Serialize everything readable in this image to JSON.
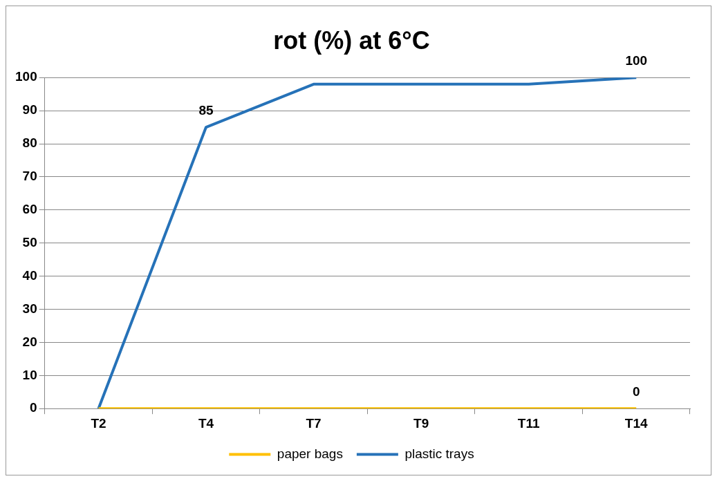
{
  "chart_data": {
    "type": "line",
    "title": "rot (%) at 6°C",
    "categories": [
      "T2",
      "T4",
      "T7",
      "T9",
      "T11",
      "T14"
    ],
    "series": [
      {
        "name": "paper bags",
        "color": "#ffc000",
        "values": [
          0,
          0,
          0,
          0,
          0,
          0
        ],
        "value_labels": [
          null,
          null,
          null,
          null,
          null,
          "0"
        ]
      },
      {
        "name": "plastic trays",
        "color": "#2672b8",
        "values": [
          0,
          85,
          98,
          98,
          98,
          100
        ],
        "value_labels": [
          null,
          "85",
          null,
          null,
          null,
          "100"
        ]
      }
    ],
    "ylim": [
      0,
      100
    ],
    "yticks": [
      0,
      10,
      20,
      30,
      40,
      50,
      60,
      70,
      80,
      90,
      100
    ],
    "grid": "y",
    "legend": "bottom",
    "marker": "none",
    "line_style": "solid"
  }
}
